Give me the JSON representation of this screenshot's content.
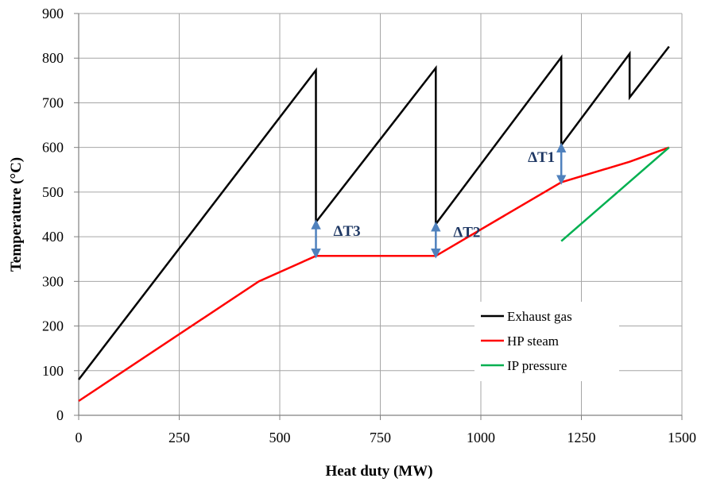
{
  "chart_data": {
    "type": "line",
    "title": "",
    "xlabel": "Heat duty (MW)",
    "ylabel": "Temperature (°C)",
    "xlim": [
      0,
      1500
    ],
    "ylim": [
      0,
      900
    ],
    "xticks": [
      0,
      250,
      500,
      750,
      1000,
      1250,
      1500
    ],
    "yticks": [
      0,
      100,
      200,
      300,
      400,
      500,
      600,
      700,
      800,
      900
    ],
    "grid": true,
    "legend_position": "bottom-right",
    "series": [
      {
        "name": "Exhaust gas",
        "color": "#000000",
        "points": [
          [
            0,
            80
          ],
          [
            590,
            773
          ],
          [
            590,
            433
          ],
          [
            888,
            778
          ],
          [
            888,
            428
          ],
          [
            1200,
            802
          ],
          [
            1200,
            605
          ],
          [
            1370,
            810
          ],
          [
            1370,
            712
          ],
          [
            1468,
            826
          ]
        ]
      },
      {
        "name": "HP steam",
        "color": "#ff0000",
        "points": [
          [
            0,
            32
          ],
          [
            448,
            300
          ],
          [
            590,
            357
          ],
          [
            888,
            357
          ],
          [
            1200,
            522
          ],
          [
            1370,
            568
          ],
          [
            1468,
            600
          ]
        ]
      },
      {
        "name": "IP pressure",
        "color": "#00b050",
        "points": [
          [
            1200,
            390
          ],
          [
            1468,
            600
          ]
        ]
      }
    ],
    "annotations": [
      {
        "label": "ΔT3",
        "x": 590,
        "y_from": 357,
        "y_to": 433
      },
      {
        "label": "ΔT2",
        "x": 888,
        "y_from": 357,
        "y_to": 428
      },
      {
        "label": "ΔT1",
        "x": 1200,
        "y_from": 522,
        "y_to": 605
      }
    ]
  }
}
